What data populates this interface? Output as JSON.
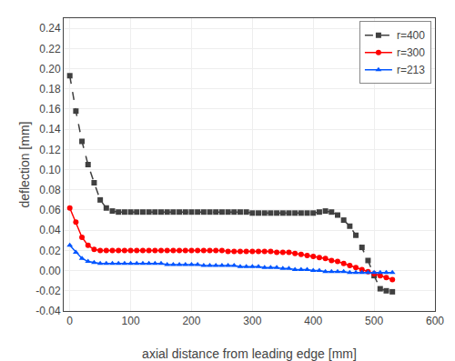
{
  "chart_data": {
    "type": "line",
    "x": [
      0,
      10,
      20,
      30,
      40,
      50,
      60,
      70,
      80,
      90,
      100,
      110,
      120,
      130,
      140,
      150,
      160,
      170,
      180,
      190,
      200,
      210,
      220,
      230,
      240,
      250,
      260,
      270,
      280,
      290,
      300,
      310,
      320,
      330,
      340,
      350,
      360,
      370,
      380,
      390,
      400,
      410,
      420,
      430,
      440,
      450,
      460,
      470,
      480,
      490,
      500,
      510,
      520,
      530
    ],
    "series": [
      {
        "name": "r=400",
        "color": "#404040",
        "marker": "square",
        "line_style": "dashed",
        "values": [
          0.193,
          0.158,
          0.128,
          0.105,
          0.087,
          0.07,
          0.062,
          0.059,
          0.058,
          0.058,
          0.058,
          0.058,
          0.058,
          0.058,
          0.058,
          0.058,
          0.058,
          0.058,
          0.058,
          0.058,
          0.058,
          0.058,
          0.058,
          0.058,
          0.058,
          0.058,
          0.058,
          0.058,
          0.058,
          0.058,
          0.057,
          0.057,
          0.057,
          0.057,
          0.057,
          0.057,
          0.057,
          0.057,
          0.057,
          0.057,
          0.057,
          0.058,
          0.059,
          0.058,
          0.055,
          0.05,
          0.044,
          0.035,
          0.023,
          0.01,
          -0.005,
          -0.018,
          -0.02,
          -0.021
        ]
      },
      {
        "name": "r=300",
        "color": "#ff0000",
        "marker": "circle",
        "line_style": "solid",
        "values": [
          0.062,
          0.048,
          0.033,
          0.025,
          0.021,
          0.02,
          0.02,
          0.02,
          0.02,
          0.02,
          0.02,
          0.02,
          0.02,
          0.02,
          0.02,
          0.02,
          0.02,
          0.02,
          0.02,
          0.02,
          0.02,
          0.02,
          0.02,
          0.02,
          0.02,
          0.02,
          0.019,
          0.019,
          0.019,
          0.019,
          0.019,
          0.019,
          0.019,
          0.019,
          0.018,
          0.018,
          0.018,
          0.017,
          0.016,
          0.015,
          0.014,
          0.013,
          0.012,
          0.01,
          0.009,
          0.007,
          0.005,
          0.003,
          0.001,
          -0.001,
          -0.003,
          -0.005,
          -0.007,
          -0.009
        ]
      },
      {
        "name": "r=213",
        "color": "#0055ff",
        "marker": "triangle",
        "line_style": "solid",
        "values": [
          0.025,
          0.018,
          0.012,
          0.009,
          0.008,
          0.007,
          0.007,
          0.007,
          0.007,
          0.007,
          0.007,
          0.007,
          0.007,
          0.007,
          0.007,
          0.007,
          0.006,
          0.006,
          0.006,
          0.006,
          0.006,
          0.006,
          0.005,
          0.005,
          0.005,
          0.005,
          0.005,
          0.005,
          0.004,
          0.004,
          0.004,
          0.004,
          0.003,
          0.003,
          0.003,
          0.002,
          0.002,
          0.001,
          0.001,
          0.001,
          0.0,
          0.0,
          -0.001,
          -0.001,
          -0.001,
          -0.001,
          -0.002,
          -0.002,
          -0.002,
          -0.002,
          -0.002,
          -0.002,
          -0.002,
          -0.002
        ]
      }
    ],
    "xlabel": "axial distance from leading edge [mm]",
    "ylabel": "deflection [mm]",
    "xlim": [
      -10,
      600
    ],
    "ylim": [
      -0.04,
      0.25
    ],
    "xticks": [
      0,
      100,
      200,
      300,
      400,
      500,
      600
    ],
    "yticks": [
      -0.04,
      -0.02,
      {
        "value": 0,
        "label": "0.00"
      },
      0.02,
      0.04,
      0.06,
      0.08,
      {
        "value": 0.1,
        "label": "0.10"
      },
      0.12,
      0.14,
      0.16,
      0.18,
      {
        "value": 0.2,
        "label": "0.20"
      },
      0.22,
      0.24
    ],
    "grid": true,
    "legend": "upper right"
  }
}
